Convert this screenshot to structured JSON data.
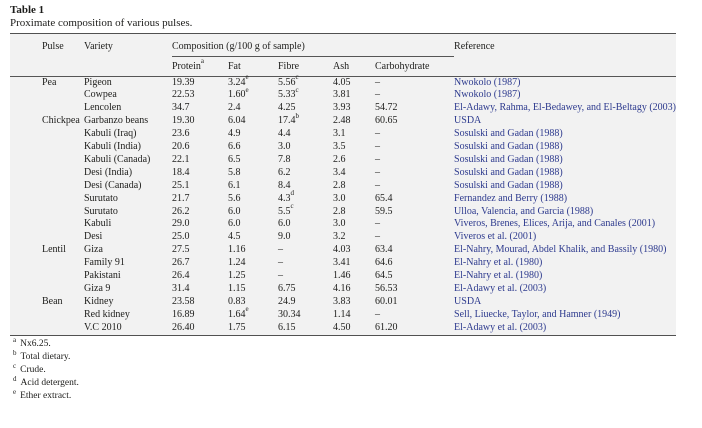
{
  "colors": {
    "reference_link": "#2d3a8e",
    "text": "#1d1d1b",
    "table_background": "#f2f2f2",
    "rule": "#515151"
  },
  "heading": {
    "label": "Table 1",
    "caption": "Proximate composition of various pulses."
  },
  "table": {
    "group_header": {
      "composition": "Composition (g/100 g of sample)",
      "reference": "Reference"
    },
    "columns": {
      "pulse": "Pulse",
      "variety": "Variety",
      "protein": "Protein",
      "protein_sup": "a",
      "fat": "Fat",
      "fibre": "Fibre",
      "ash": "Ash",
      "carbohydrate": "Carbohydrate"
    },
    "rows": [
      {
        "pulse": "Pea",
        "variety": "Pigeon",
        "protein": "19.39",
        "fat": "3.24",
        "fat_sup": "e",
        "fibre": "5.56",
        "fibre_sup": "c",
        "ash": "4.05",
        "carbohydrate": "–",
        "reference": "Nwokolo (1987)"
      },
      {
        "pulse": "",
        "variety": "Cowpea",
        "protein": "22.53",
        "fat": "1.60",
        "fat_sup": "e",
        "fibre": "5.33",
        "fibre_sup": "c",
        "ash": "3.81",
        "carbohydrate": "–",
        "reference": "Nwokolo (1987)"
      },
      {
        "pulse": "",
        "variety": "Lencolen",
        "protein": "34.7",
        "fat": "2.4",
        "fibre": "4.25",
        "ash": "3.93",
        "carbohydrate": "54.72",
        "reference": "El-Adawy, Rahma, El-Bedawey, and El-Beltagy (2003)"
      },
      {
        "pulse": "Chickpea",
        "variety": "Garbanzo beans",
        "protein": "19.30",
        "fat": "6.04",
        "fibre": "17.4",
        "fibre_sup": "b",
        "ash": "2.48",
        "carbohydrate": "60.65",
        "reference": "USDA"
      },
      {
        "pulse": "",
        "variety": "Kabuli (Iraq)",
        "protein": "23.6",
        "fat": "4.9",
        "fibre": "4.4",
        "ash": "3.1",
        "carbohydrate": "–",
        "reference": "Sosulski and Gadan (1988)"
      },
      {
        "pulse": "",
        "variety": "Kabuli (India)",
        "protein": "20.6",
        "fat": "6.6",
        "fibre": "3.0",
        "ash": "3.5",
        "carbohydrate": "–",
        "reference": "Sosulski and Gadan (1988)"
      },
      {
        "pulse": "",
        "variety": "Kabuli (Canada)",
        "protein": "22.1",
        "fat": "6.5",
        "fibre": "7.8",
        "ash": "2.6",
        "carbohydrate": "–",
        "reference": "Sosulski and Gadan (1988)"
      },
      {
        "pulse": "",
        "variety": "Desi (India)",
        "protein": "18.4",
        "fat": "5.8",
        "fibre": "6.2",
        "ash": "3.4",
        "carbohydrate": "–",
        "reference": "Sosulski and Gadan (1988)"
      },
      {
        "pulse": "",
        "variety": "Desi (Canada)",
        "protein": "25.1",
        "fat": "6.1",
        "fibre": "8.4",
        "ash": "2.8",
        "carbohydrate": "–",
        "reference": "Sosulski and Gadan (1988)"
      },
      {
        "pulse": "",
        "variety": "Surutato",
        "protein": "21.7",
        "fat": "5.6",
        "fibre": "4.3",
        "fibre_sup": "d",
        "ash": "3.0",
        "carbohydrate": "65.4",
        "reference": "Fernandez and Berry (1988)"
      },
      {
        "pulse": "",
        "variety": "Surutato",
        "protein": "26.2",
        "fat": "6.0",
        "fibre": "5.5",
        "fibre_sup": "c",
        "ash": "2.8",
        "carbohydrate": "59.5",
        "reference": "Ulloa, Valencia, and Garcia (1988)"
      },
      {
        "pulse": "",
        "variety": "Kabuli",
        "protein": "29.0",
        "fat": "6.0",
        "fibre": "6.0",
        "ash": "3.0",
        "carbohydrate": "–",
        "reference": "Viveros, Brenes, Elices, Arija, and Canales (2001)"
      },
      {
        "pulse": "",
        "variety": "Desi",
        "protein": "25.0",
        "fat": "4.5",
        "fibre": "9.0",
        "ash": "3.2",
        "carbohydrate": "–",
        "reference": "Viveros et al. (2001)"
      },
      {
        "pulse": "Lentil",
        "variety": "Giza",
        "protein": "27.5",
        "fat": "1.16",
        "fibre": "–",
        "ash": "4.03",
        "carbohydrate": "63.4",
        "reference": "El-Nahry, Mourad, Abdel Khalik, and Bassily (1980)"
      },
      {
        "pulse": "",
        "variety": "Family 91",
        "protein": "26.7",
        "fat": "1.24",
        "fibre": "–",
        "ash": "3.41",
        "carbohydrate": "64.6",
        "reference": "El-Nahry et al. (1980)"
      },
      {
        "pulse": "",
        "variety": "Pakistani",
        "protein": "26.4",
        "fat": "1.25",
        "fibre": "–",
        "ash": "1.46",
        "carbohydrate": "64.5",
        "reference": "El-Nahry et al. (1980)"
      },
      {
        "pulse": "",
        "variety": "Giza 9",
        "protein": "31.4",
        "fat": "1.15",
        "fibre": "6.75",
        "ash": "4.16",
        "carbohydrate": "56.53",
        "reference": "El-Adawy et al. (2003)"
      },
      {
        "pulse": "Bean",
        "variety": "Kidney",
        "protein": "23.58",
        "fat": "0.83",
        "fibre": "24.9",
        "ash": "3.83",
        "carbohydrate": "60.01",
        "reference": "USDA"
      },
      {
        "pulse": "",
        "variety": "Red kidney",
        "protein": "16.89",
        "fat": "1.64",
        "fat_sup": "e",
        "fibre": "30.34",
        "ash": "1.14",
        "carbohydrate": "–",
        "reference": "Sell, Liuecke, Taylor, and Hamner (1949)"
      },
      {
        "pulse": "",
        "variety": "V.C 2010",
        "protein": "26.40",
        "fat": "1.75",
        "fibre": "6.15",
        "ash": "4.50",
        "carbohydrate": "61.20",
        "reference": "El-Adawy et al. (2003)"
      }
    ],
    "footnotes": [
      {
        "sup": "a",
        "text": "Nx6.25."
      },
      {
        "sup": "b",
        "text": "Total dietary."
      },
      {
        "sup": "c",
        "text": "Crude."
      },
      {
        "sup": "d",
        "text": "Acid detergent."
      },
      {
        "sup": "e",
        "text": "Ether extract."
      }
    ]
  }
}
